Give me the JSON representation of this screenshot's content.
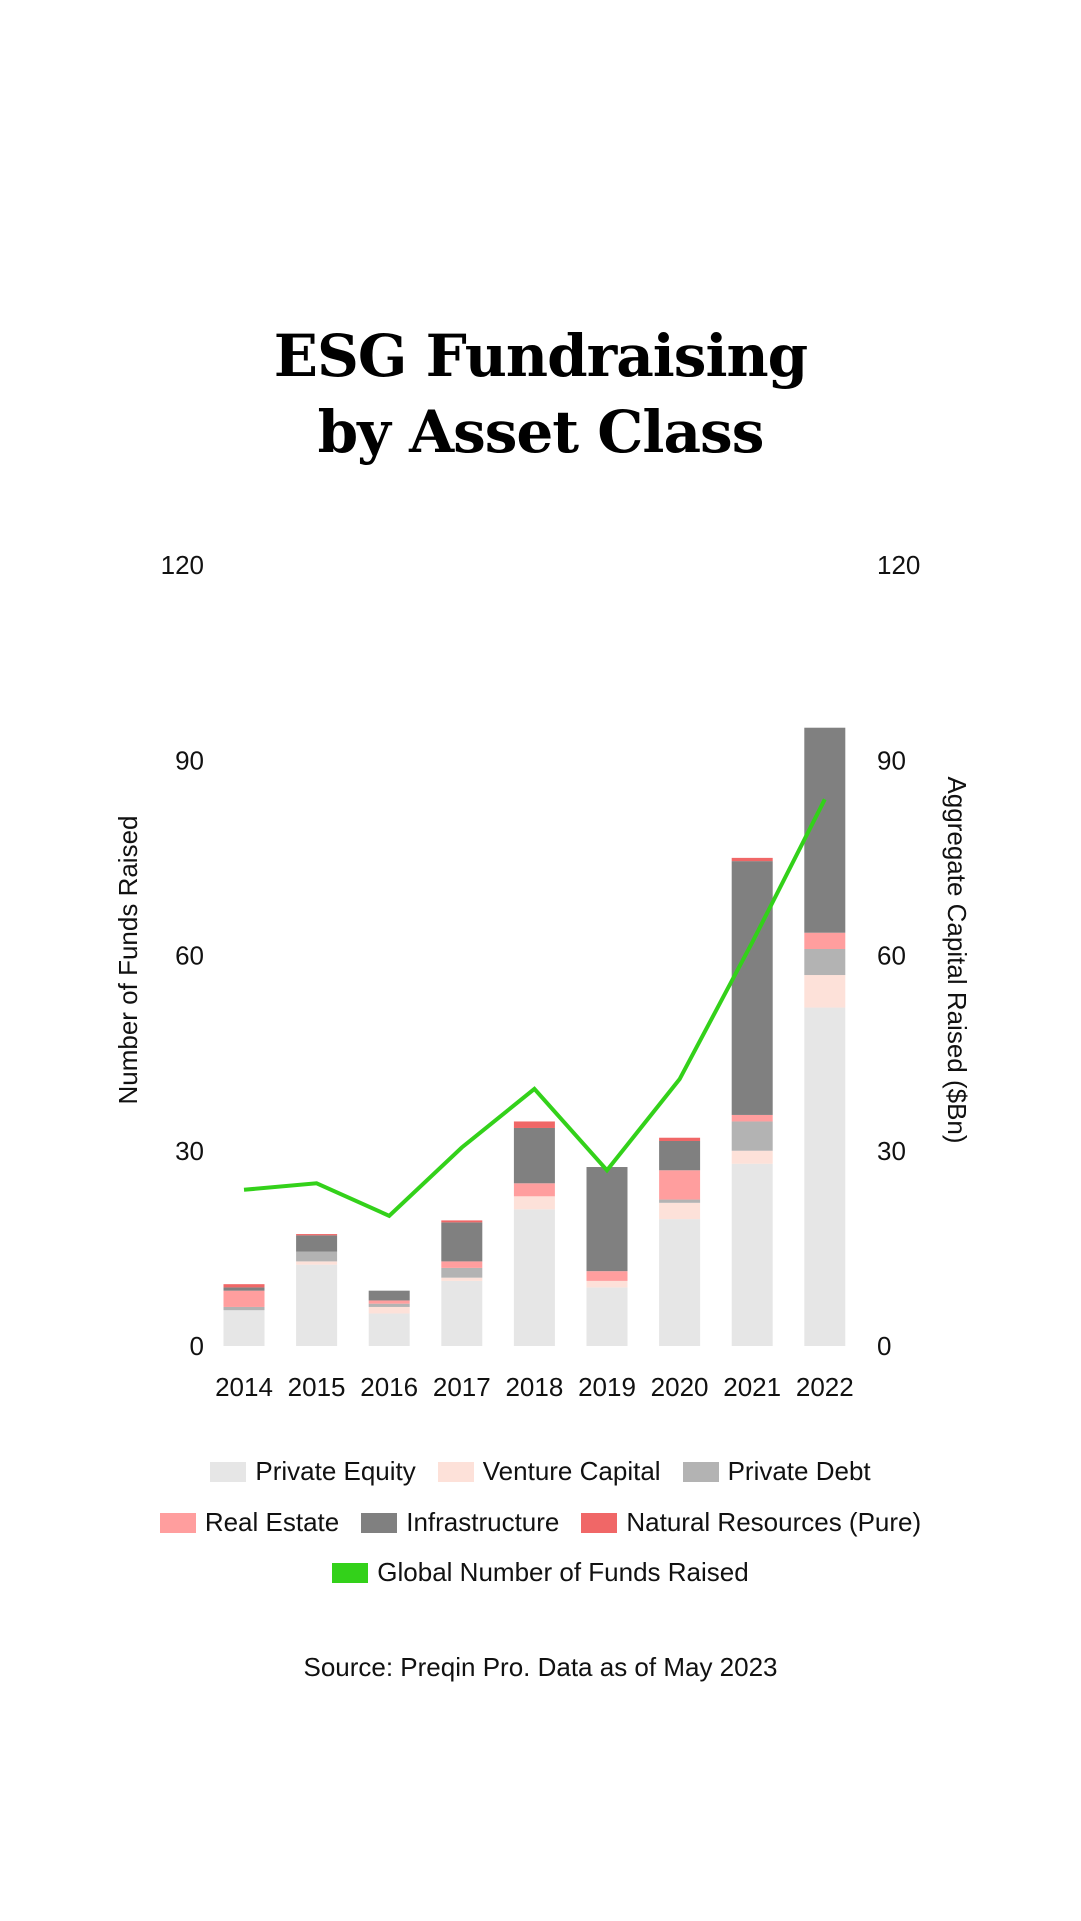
{
  "title": {
    "line1": "ESG Fundraising",
    "line2": "by Asset Class"
  },
  "chart_data": {
    "type": "bar",
    "stacked": true,
    "categories": [
      "2014",
      "2015",
      "2016",
      "2017",
      "2018",
      "2019",
      "2020",
      "2021",
      "2022"
    ],
    "series": [
      {
        "name": "Private Equity",
        "color": "#e6e6e6",
        "values": [
          5.5,
          12.5,
          5,
          10,
          21,
          9,
          19.5,
          28,
          52
        ]
      },
      {
        "name": "Venture Capital",
        "color": "#fde1d9",
        "values": [
          0,
          0.5,
          1,
          0.5,
          2,
          1,
          2.5,
          2,
          5
        ]
      },
      {
        "name": "Private Debt",
        "color": "#b3b3b3",
        "values": [
          0.5,
          1.5,
          0.5,
          1.5,
          0,
          0,
          0.5,
          4.5,
          4
        ]
      },
      {
        "name": "Real Estate",
        "color": "#ff9e9e",
        "values": [
          2.5,
          0,
          0.5,
          1,
          2,
          1.5,
          4.5,
          1,
          2.5
        ]
      },
      {
        "name": "Infrastructure",
        "color": "#808080",
        "values": [
          0.5,
          2.5,
          1.5,
          6,
          8.5,
          16,
          4.5,
          39,
          31.5
        ]
      },
      {
        "name": "Natural Resources (Pure)",
        "color": "#f06767",
        "values": [
          0.5,
          0.2,
          0,
          0.3,
          1,
          0,
          0.5,
          0.5,
          0
        ]
      }
    ],
    "line_series": {
      "name": "Global Number of Funds Raised",
      "color": "#33d11a",
      "values": [
        24,
        25,
        20,
        30.5,
        39.5,
        27,
        41,
        62,
        84
      ]
    },
    "left_axis": {
      "label": "Number of Funds Raised",
      "ticks": [
        "0",
        "30",
        "60",
        "90",
        "120"
      ],
      "range": [
        0,
        120
      ]
    },
    "right_axis": {
      "label": "Aggregate Capital Raised ($Bn)",
      "ticks": [
        "0",
        "30",
        "60",
        "90",
        "120"
      ],
      "range": [
        0,
        120
      ]
    },
    "grid": false,
    "legend_position": "bottom"
  },
  "source": "Source: Preqin Pro. Data as of May 2023"
}
